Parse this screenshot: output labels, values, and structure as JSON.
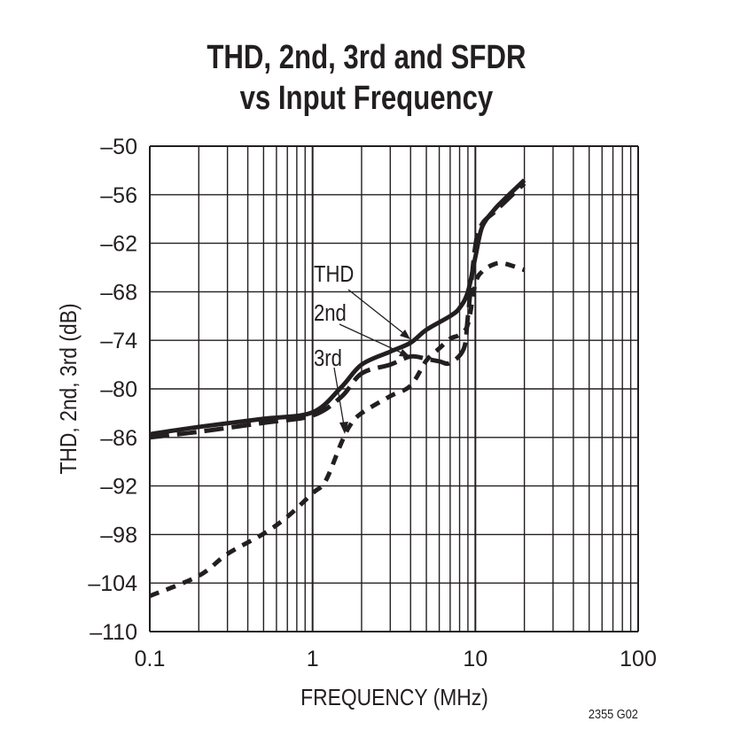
{
  "chart_data": {
    "type": "line",
    "title": "THD, 2nd, 3rd and SFDR\nvs Input Frequency",
    "title_lines": [
      "THD, 2nd, 3rd and SFDR",
      "vs Input Frequency"
    ],
    "xlabel": "FREQUENCY (MHz)",
    "ylabel": "THD, 2nd, 3rd (dB)",
    "xscale": "log",
    "xlim": [
      0.1,
      100
    ],
    "ylim": [
      -110,
      -50
    ],
    "xticks": [
      "0.1",
      "1",
      "10",
      "100"
    ],
    "yticks": [
      "–50",
      "–56",
      "–62",
      "–68",
      "–74",
      "–80",
      "–86",
      "–92",
      "–98",
      "–104",
      "–110"
    ],
    "grid": true,
    "series": [
      {
        "name": "THD",
        "style": "solid",
        "x": [
          0.1,
          0.2,
          0.5,
          1,
          1.5,
          2,
          3,
          4,
          5,
          7,
          8,
          9,
          10,
          11,
          13,
          15,
          20
        ],
        "y": [
          -85.6,
          -84.7,
          -83.7,
          -82.9,
          -79.8,
          -77,
          -75.4,
          -74.3,
          -72.7,
          -71,
          -70,
          -68,
          -63.7,
          -60,
          -57.9,
          -56.6,
          -54.2
        ]
      },
      {
        "name": "2nd",
        "style": "long-dash",
        "x": [
          0.1,
          0.2,
          0.5,
          1,
          1.5,
          2,
          3,
          4,
          5,
          6,
          7,
          8.5,
          9,
          10,
          11,
          13,
          15,
          20
        ],
        "y": [
          -86,
          -85.3,
          -84.2,
          -83.3,
          -81,
          -78.1,
          -77,
          -76,
          -76.3,
          -76.6,
          -76.8,
          -75,
          -71,
          -62.3,
          -59.6,
          -58.2,
          -57,
          -54.6
        ]
      },
      {
        "name": "3rd",
        "style": "short-dash",
        "x": [
          0.1,
          0.2,
          0.3,
          0.5,
          0.7,
          1,
          1.2,
          1.5,
          1.7,
          2,
          3,
          4,
          5,
          6,
          7,
          8,
          9,
          10,
          11,
          13,
          15,
          20
        ],
        "y": [
          -105.6,
          -103.1,
          -100.4,
          -97.9,
          -95.8,
          -92.9,
          -91.4,
          -86.7,
          -84.5,
          -83,
          -80.9,
          -79.6,
          -76.5,
          -75,
          -73.8,
          -73.3,
          -72,
          -67,
          -65.5,
          -64.6,
          -64.5,
          -65.3
        ]
      }
    ],
    "annotations": [
      "THD",
      "2nd",
      "3rd"
    ],
    "figure_id": "2355 G02"
  }
}
